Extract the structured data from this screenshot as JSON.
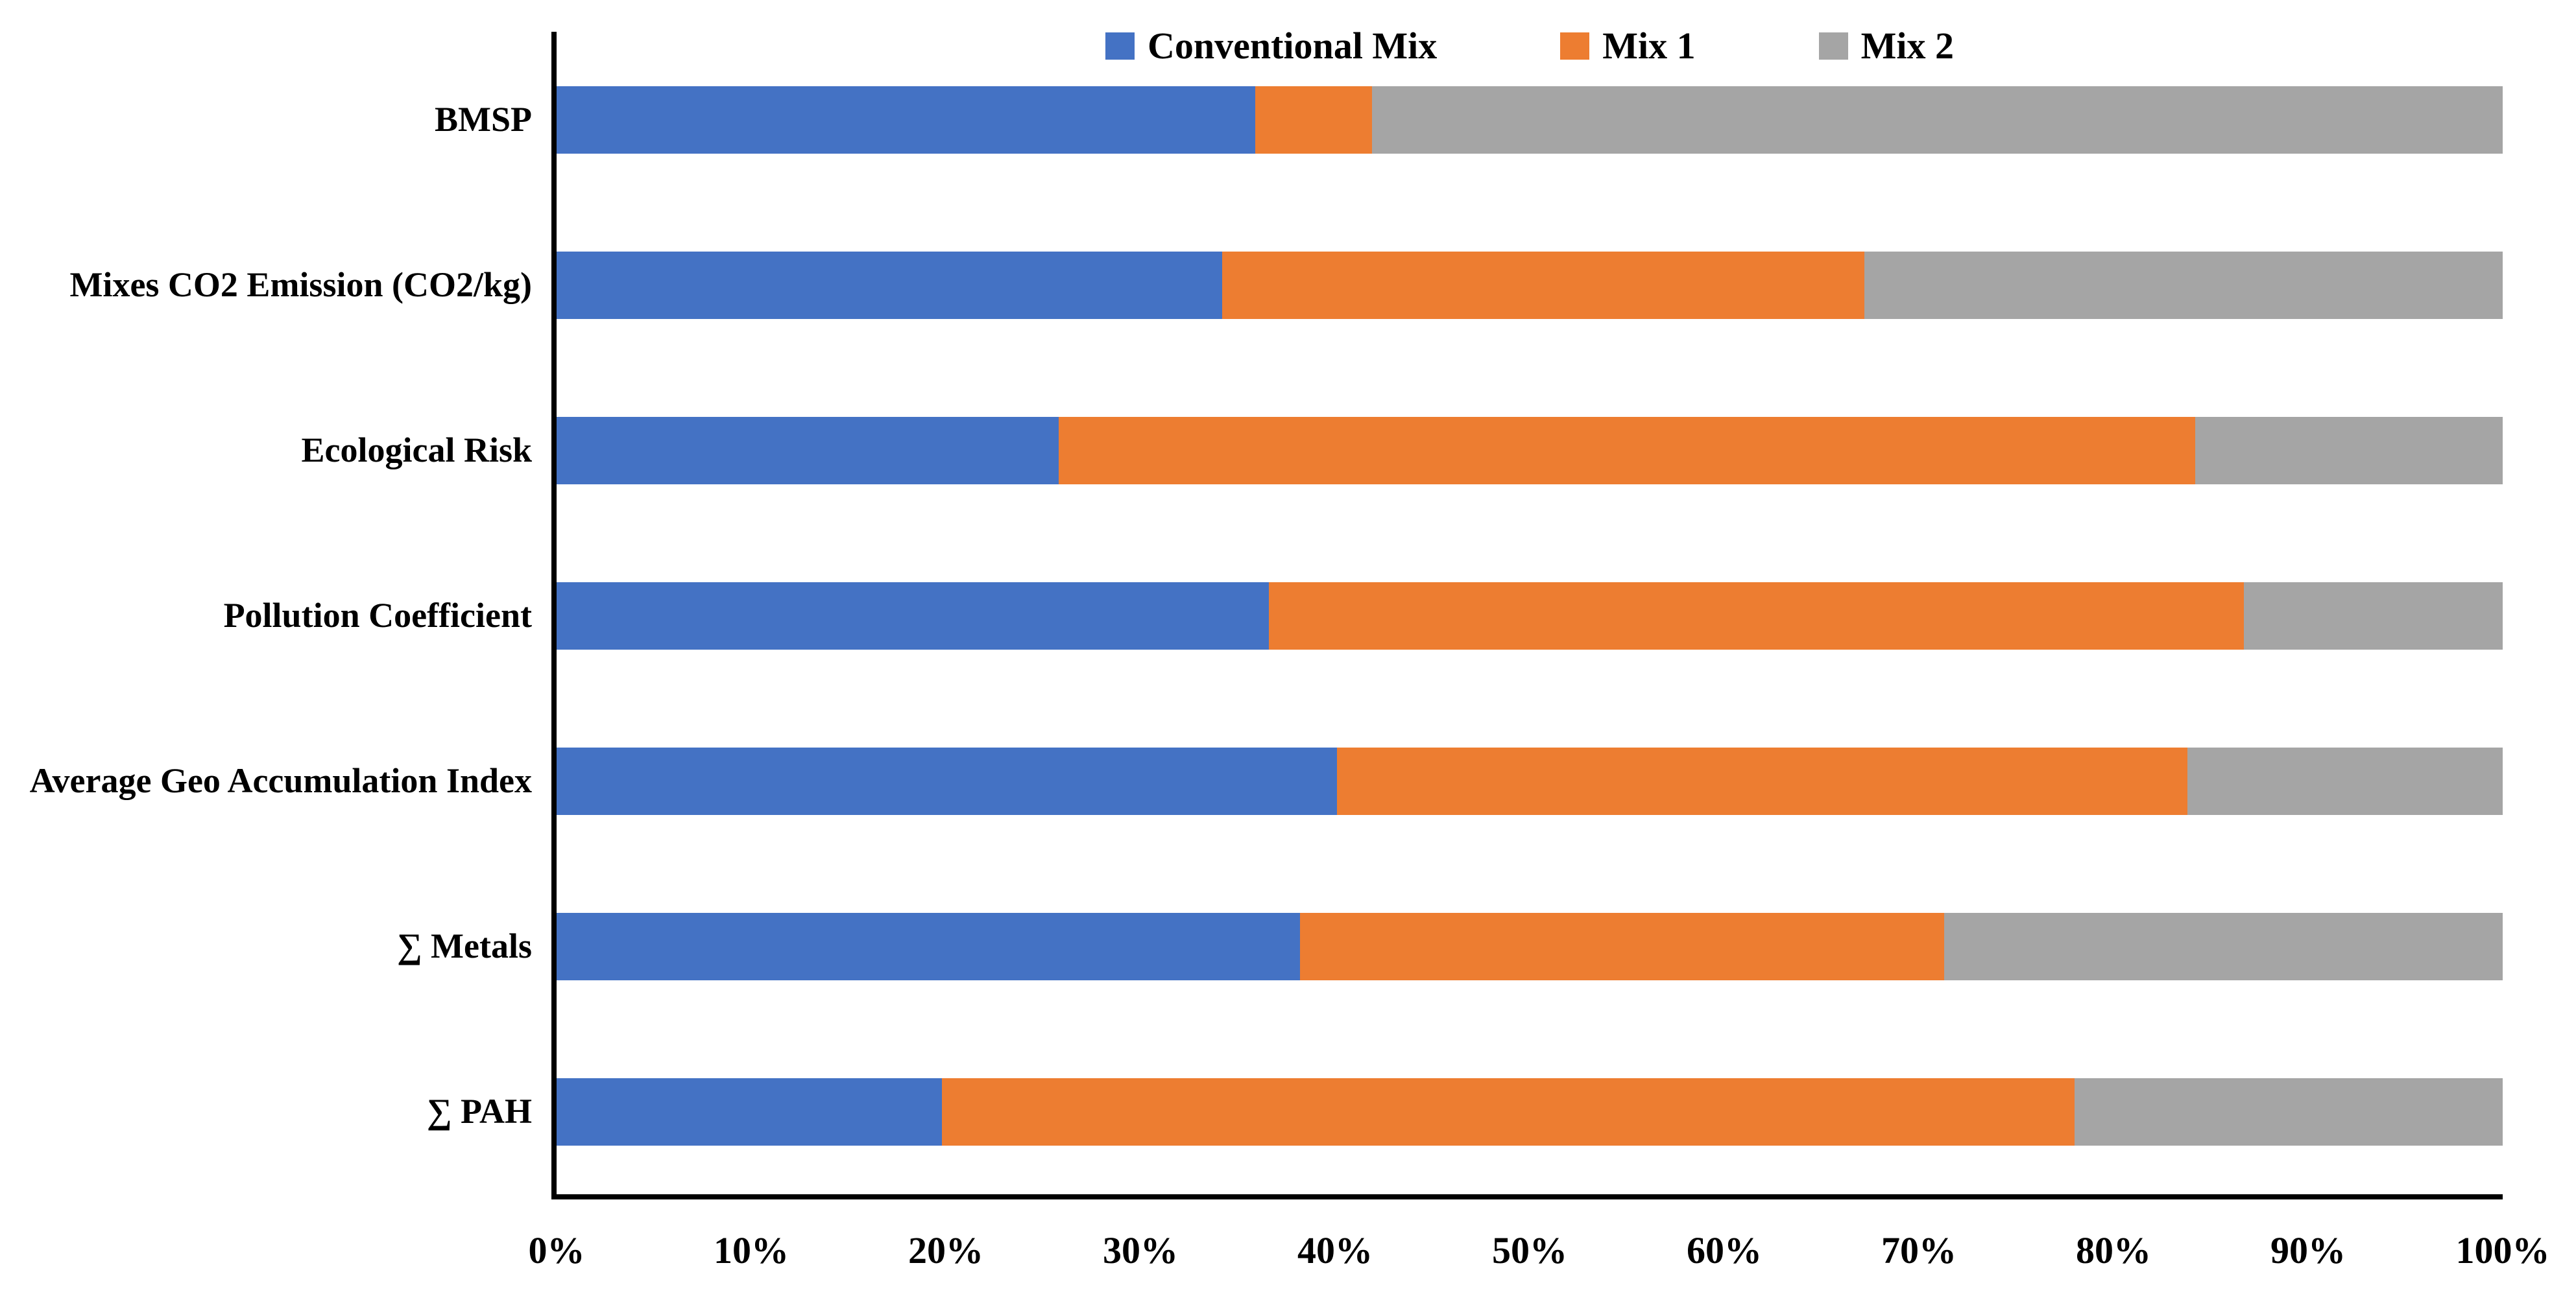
{
  "figure": {
    "background_color": "#ffffff",
    "text_color": "#000000",
    "axis_color": "#000000"
  },
  "chart_data": {
    "type": "bar",
    "variant": "100%-stacked",
    "orientation": "horizontal",
    "title": "",
    "xlabel": "",
    "ylabel": "",
    "unit": "%",
    "xlim": [
      0,
      100
    ],
    "grid": false,
    "legend_position": "top",
    "categories": [
      "BMSP",
      "Mixes CO2 Emission (CO2/kg)",
      "Ecological Risk",
      "Pollution Coefficient",
      "Average Geo Accumulation Index",
      "∑ Metals",
      "∑ PAH"
    ],
    "series": [
      {
        "name": "Conventional Mix",
        "color": "#4472C4",
        "values": [
          35.9,
          34.2,
          25.8,
          36.6,
          40.1,
          38.2,
          19.8
        ]
      },
      {
        "name": "Mix 1",
        "color": "#ED7D31",
        "values": [
          6.0,
          33.0,
          58.4,
          50.1,
          43.7,
          33.1,
          58.2
        ]
      },
      {
        "name": "Mix 2",
        "color": "#A5A5A5",
        "values": [
          58.1,
          32.8,
          15.8,
          13.3,
          16.2,
          28.7,
          22.0
        ]
      }
    ],
    "x_axis_tick_labels": [
      "0%",
      "10%",
      "20%",
      "30%",
      "40%",
      "50%",
      "60%",
      "70%",
      "80%",
      "90%",
      "100%"
    ]
  }
}
